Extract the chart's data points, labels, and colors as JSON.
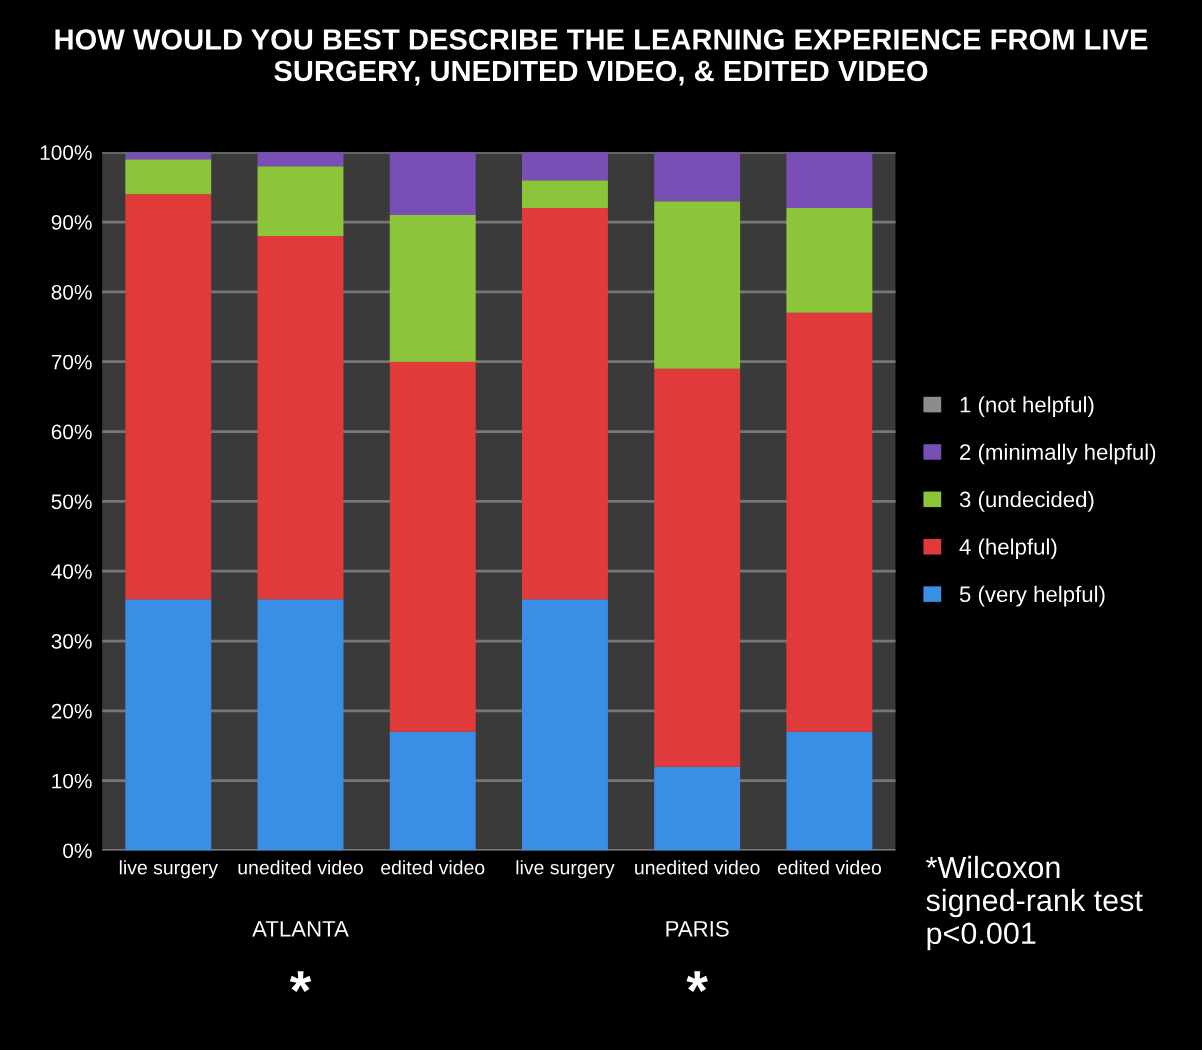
{
  "chart_data": {
    "type": "bar",
    "stacked": true,
    "title": "HOW WOULD YOU BEST DESCRIBE THE LEARNING EXPERIENCE FROM LIVE SURGERY, UNEDITED VIDEO, & EDITED VIDEO",
    "categories": [
      "live surgery",
      "unedited video",
      "edited video",
      "live surgery",
      "unedited video",
      "edited video"
    ],
    "series": [
      {
        "name": "5 (very helpful)",
        "color": "#3a8ee6",
        "values": [
          36,
          36,
          17,
          36,
          12,
          17
        ]
      },
      {
        "name": "4 (helpful)",
        "color": "#e03a3a",
        "values": [
          58,
          52,
          53,
          56,
          57,
          60
        ]
      },
      {
        "name": "3 (undecided)",
        "color": "#8cc43a",
        "values": [
          5,
          10,
          21,
          4,
          24,
          15
        ]
      },
      {
        "name": "2 (minimally helpful)",
        "color": "#7a4fb5",
        "values": [
          1,
          2,
          9,
          4,
          7,
          8
        ]
      },
      {
        "name": "1 (not helpful)",
        "color": "#8c8c8c",
        "values": [
          0,
          0,
          0,
          0,
          0,
          0
        ]
      }
    ],
    "ylim": [
      0,
      100
    ],
    "yticks": [
      {
        "value": 0,
        "label": "0%"
      },
      {
        "value": 10,
        "label": "10%"
      },
      {
        "value": 20,
        "label": "20%"
      },
      {
        "value": 30,
        "label": "30%"
      },
      {
        "value": 40,
        "label": "40%"
      },
      {
        "value": 50,
        "label": "50%"
      },
      {
        "value": 60,
        "label": "60%"
      },
      {
        "value": 70,
        "label": "70%"
      },
      {
        "value": 80,
        "label": "80%"
      },
      {
        "value": 90,
        "label": "90%"
      },
      {
        "value": 100,
        "label": "100%"
      }
    ],
    "grid": "y",
    "legend": "right",
    "annotations": [
      "ATLANTA",
      "PARIS",
      "*",
      "*",
      "*Wilcoxon signed-rank test p<0.001"
    ]
  }
}
